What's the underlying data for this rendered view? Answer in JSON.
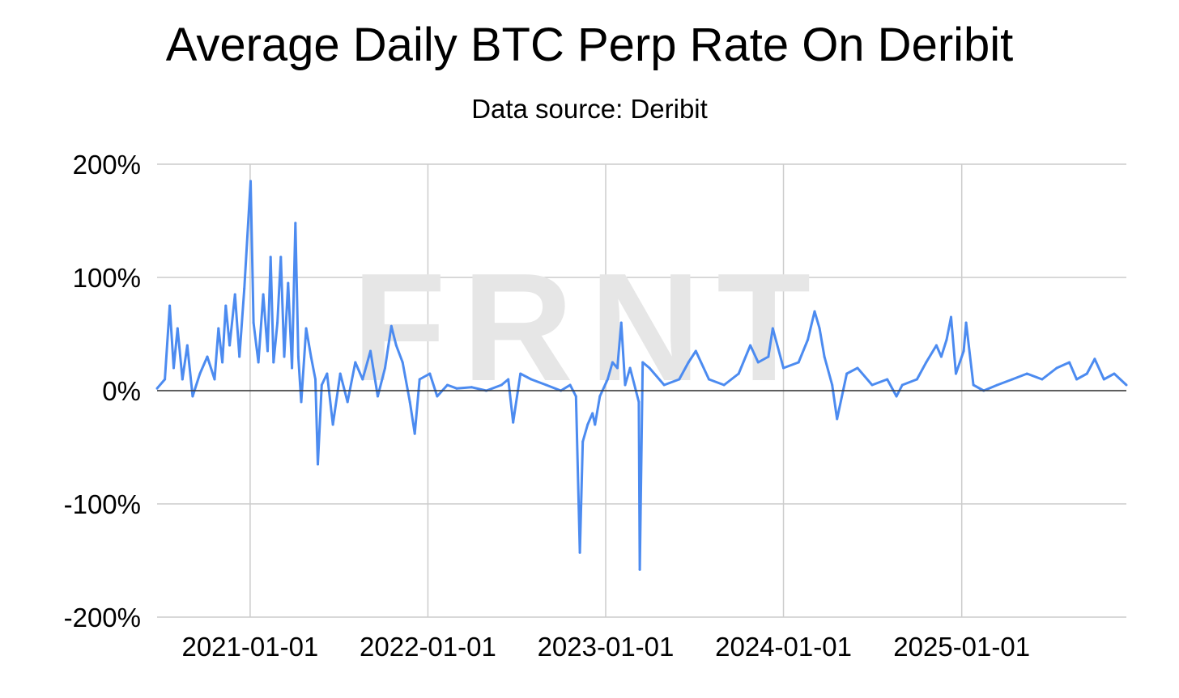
{
  "title": "Average Daily BTC Perp Rate On Deribit",
  "subtitle": "Data source: Deribit",
  "watermark": "FRNT",
  "colors": {
    "series": "#4c8bf0",
    "grid": "#cccccc",
    "zero_line": "#333333"
  },
  "chart_data": {
    "type": "line",
    "title": "Average Daily BTC Perp Rate On Deribit",
    "subtitle": "Data source: Deribit",
    "xlabel": "",
    "ylabel": "",
    "x_tick_labels": [
      "2021-01-01",
      "2022-01-01",
      "2023-01-01",
      "2024-01-01",
      "2025-01-01"
    ],
    "y_tick_labels": [
      "200%",
      "100%",
      "0%",
      "-100%",
      "-200%"
    ],
    "ylim": [
      -200,
      200
    ],
    "xlim": [
      "2020-06-24",
      "2025-12-05"
    ],
    "grid": true,
    "legend": "none",
    "series": [
      {
        "values": [
          [
            "2020-06-24",
            2
          ],
          [
            "2020-07-10",
            10
          ],
          [
            "2020-07-20",
            75
          ],
          [
            "2020-07-28",
            20
          ],
          [
            "2020-08-05",
            55
          ],
          [
            "2020-08-15",
            10
          ],
          [
            "2020-08-25",
            40
          ],
          [
            "2020-09-05",
            -5
          ],
          [
            "2020-09-20",
            15
          ],
          [
            "2020-10-05",
            30
          ],
          [
            "2020-10-20",
            10
          ],
          [
            "2020-10-28",
            55
          ],
          [
            "2020-11-05",
            25
          ],
          [
            "2020-11-12",
            75
          ],
          [
            "2020-11-20",
            40
          ],
          [
            "2020-12-01",
            85
          ],
          [
            "2020-12-10",
            30
          ],
          [
            "2020-12-20",
            90
          ],
          [
            "2021-01-02",
            185
          ],
          [
            "2021-01-08",
            60
          ],
          [
            "2021-01-18",
            25
          ],
          [
            "2021-01-28",
            85
          ],
          [
            "2021-02-06",
            35
          ],
          [
            "2021-02-12",
            118
          ],
          [
            "2021-02-18",
            25
          ],
          [
            "2021-02-26",
            60
          ],
          [
            "2021-03-05",
            118
          ],
          [
            "2021-03-12",
            30
          ],
          [
            "2021-03-20",
            95
          ],
          [
            "2021-03-28",
            20
          ],
          [
            "2021-04-04",
            148
          ],
          [
            "2021-04-10",
            30
          ],
          [
            "2021-04-16",
            -10
          ],
          [
            "2021-04-26",
            55
          ],
          [
            "2021-05-06",
            30
          ],
          [
            "2021-05-15",
            10
          ],
          [
            "2021-05-20",
            -65
          ],
          [
            "2021-05-28",
            5
          ],
          [
            "2021-06-08",
            15
          ],
          [
            "2021-06-20",
            -30
          ],
          [
            "2021-07-05",
            15
          ],
          [
            "2021-07-20",
            -10
          ],
          [
            "2021-08-05",
            25
          ],
          [
            "2021-08-20",
            10
          ],
          [
            "2021-09-05",
            35
          ],
          [
            "2021-09-20",
            -5
          ],
          [
            "2021-10-05",
            20
          ],
          [
            "2021-10-18",
            57
          ],
          [
            "2021-10-28",
            40
          ],
          [
            "2021-11-10",
            25
          ],
          [
            "2021-11-25",
            -10
          ],
          [
            "2021-12-05",
            -38
          ],
          [
            "2021-12-15",
            10
          ],
          [
            "2022-01-05",
            15
          ],
          [
            "2022-01-20",
            -5
          ],
          [
            "2022-02-10",
            5
          ],
          [
            "2022-03-01",
            2
          ],
          [
            "2022-04-01",
            3
          ],
          [
            "2022-05-01",
            0
          ],
          [
            "2022-06-01",
            5
          ],
          [
            "2022-06-15",
            10
          ],
          [
            "2022-06-25",
            -28
          ],
          [
            "2022-07-10",
            15
          ],
          [
            "2022-08-01",
            10
          ],
          [
            "2022-09-01",
            5
          ],
          [
            "2022-10-01",
            0
          ],
          [
            "2022-10-20",
            5
          ],
          [
            "2022-11-01",
            -5
          ],
          [
            "2022-11-09",
            -143
          ],
          [
            "2022-11-15",
            -45
          ],
          [
            "2022-11-25",
            -30
          ],
          [
            "2022-12-05",
            -20
          ],
          [
            "2022-12-10",
            -30
          ],
          [
            "2022-12-20",
            -5
          ],
          [
            "2023-01-05",
            10
          ],
          [
            "2023-01-15",
            25
          ],
          [
            "2023-01-25",
            20
          ],
          [
            "2023-02-02",
            60
          ],
          [
            "2023-02-10",
            5
          ],
          [
            "2023-02-20",
            20
          ],
          [
            "2023-03-10",
            -10
          ],
          [
            "2023-03-12",
            -158
          ],
          [
            "2023-03-18",
            25
          ],
          [
            "2023-04-01",
            20
          ],
          [
            "2023-05-01",
            5
          ],
          [
            "2023-06-01",
            10
          ],
          [
            "2023-06-20",
            25
          ],
          [
            "2023-07-05",
            35
          ],
          [
            "2023-08-01",
            10
          ],
          [
            "2023-09-01",
            5
          ],
          [
            "2023-10-01",
            15
          ],
          [
            "2023-10-25",
            40
          ],
          [
            "2023-11-10",
            25
          ],
          [
            "2023-12-01",
            30
          ],
          [
            "2023-12-10",
            55
          ],
          [
            "2024-01-01",
            20
          ],
          [
            "2024-02-01",
            25
          ],
          [
            "2024-02-20",
            45
          ],
          [
            "2024-03-05",
            70
          ],
          [
            "2024-03-15",
            55
          ],
          [
            "2024-03-25",
            30
          ],
          [
            "2024-04-10",
            5
          ],
          [
            "2024-04-20",
            -25
          ],
          [
            "2024-05-10",
            15
          ],
          [
            "2024-06-01",
            20
          ],
          [
            "2024-07-01",
            5
          ],
          [
            "2024-08-01",
            10
          ],
          [
            "2024-08-20",
            -5
          ],
          [
            "2024-09-01",
            5
          ],
          [
            "2024-10-01",
            10
          ],
          [
            "2024-10-20",
            25
          ],
          [
            "2024-11-10",
            40
          ],
          [
            "2024-11-20",
            30
          ],
          [
            "2024-12-01",
            45
          ],
          [
            "2024-12-10",
            65
          ],
          [
            "2024-12-20",
            15
          ],
          [
            "2025-01-05",
            35
          ],
          [
            "2025-01-10",
            60
          ],
          [
            "2025-01-25",
            5
          ],
          [
            "2025-02-15",
            0
          ],
          [
            "2025-03-15",
            5
          ],
          [
            "2025-04-15",
            10
          ],
          [
            "2025-05-15",
            15
          ],
          [
            "2025-06-15",
            10
          ],
          [
            "2025-07-15",
            20
          ],
          [
            "2025-08-10",
            25
          ],
          [
            "2025-08-25",
            10
          ],
          [
            "2025-09-15",
            15
          ],
          [
            "2025-10-01",
            28
          ],
          [
            "2025-10-20",
            10
          ],
          [
            "2025-11-10",
            15
          ],
          [
            "2025-12-05",
            5
          ]
        ]
      }
    ]
  }
}
